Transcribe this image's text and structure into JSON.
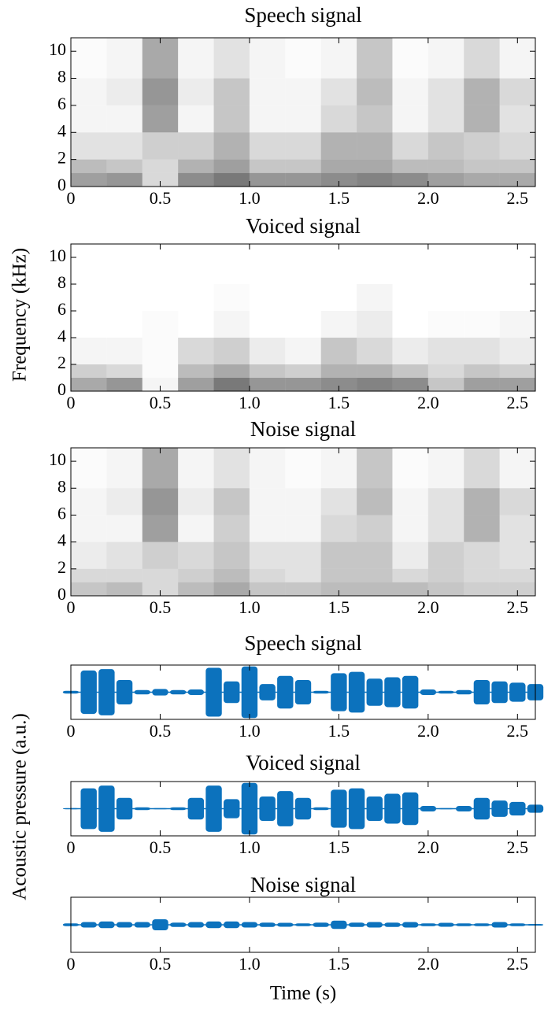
{
  "chart_data": [
    {
      "type": "spectrogram",
      "title": "Speech signal",
      "ylabel": "Frequency (kHz)",
      "xlim": [
        0,
        2.6
      ],
      "ylim": [
        0,
        11
      ],
      "xticks": [
        0,
        0.5,
        {
          "value": 1,
          "label": "1.0"
        },
        1.5,
        {
          "value": 2,
          "label": "2.0"
        },
        2.5
      ],
      "yticks": [
        0,
        2,
        4,
        6,
        8,
        10
      ],
      "time_edges": [
        0,
        0.2,
        0.4,
        0.6,
        0.8,
        1,
        1.2,
        1.4,
        1.6,
        1.8,
        2,
        2.2,
        2.4,
        2.6
      ],
      "freq_edges": [
        0,
        1,
        2,
        4,
        6,
        8,
        11
      ],
      "intensity": [
        [
          0.5,
          0.35,
          0.15,
          0.05,
          0.05,
          0.02
        ],
        [
          0.55,
          0.3,
          0.15,
          0.05,
          0.1,
          0.05
        ],
        [
          0.2,
          0.2,
          0.25,
          0.5,
          0.55,
          0.45
        ],
        [
          0.6,
          0.4,
          0.25,
          0.05,
          0.1,
          0.05
        ],
        [
          0.7,
          0.5,
          0.4,
          0.3,
          0.3,
          0.15
        ],
        [
          0.55,
          0.3,
          0.2,
          0.05,
          0.05,
          0.05
        ],
        [
          0.55,
          0.3,
          0.2,
          0.05,
          0.05,
          0.02
        ],
        [
          0.6,
          0.45,
          0.4,
          0.2,
          0.15,
          0.05
        ],
        [
          0.65,
          0.45,
          0.4,
          0.3,
          0.35,
          0.3
        ],
        [
          0.6,
          0.35,
          0.2,
          0.05,
          0.05,
          0.02
        ],
        [
          0.5,
          0.35,
          0.3,
          0.15,
          0.15,
          0.05
        ],
        [
          0.45,
          0.3,
          0.25,
          0.4,
          0.4,
          0.2
        ],
        [
          0.45,
          0.3,
          0.2,
          0.15,
          0.2,
          0.05
        ]
      ]
    },
    {
      "type": "spectrogram",
      "title": "Voiced signal",
      "xlim": [
        0,
        2.6
      ],
      "ylim": [
        0,
        11
      ],
      "xticks": [
        0,
        0.5,
        {
          "value": 1,
          "label": "1.0"
        },
        1.5,
        {
          "value": 2,
          "label": "2.0"
        },
        2.5
      ],
      "yticks": [
        0,
        2,
        4,
        6,
        8,
        10
      ],
      "time_edges": [
        0,
        0.2,
        0.4,
        0.6,
        0.8,
        1,
        1.2,
        1.4,
        1.6,
        1.8,
        2,
        2.2,
        2.4,
        2.6
      ],
      "freq_edges": [
        0,
        1,
        2,
        4,
        6,
        8,
        11
      ],
      "intensity": [
        [
          0.45,
          0.25,
          0.05,
          0,
          0,
          0
        ],
        [
          0.55,
          0.2,
          0.05,
          0,
          0,
          0
        ],
        [
          0.05,
          0.02,
          0.02,
          0.02,
          0,
          0
        ],
        [
          0.5,
          0.35,
          0.2,
          0,
          0,
          0
        ],
        [
          0.7,
          0.45,
          0.25,
          0.05,
          0.02,
          0
        ],
        [
          0.55,
          0.3,
          0.1,
          0,
          0,
          0
        ],
        [
          0.55,
          0.25,
          0.05,
          0,
          0,
          0
        ],
        [
          0.6,
          0.4,
          0.3,
          0.05,
          0,
          0
        ],
        [
          0.65,
          0.4,
          0.2,
          0.1,
          0.05,
          0
        ],
        [
          0.6,
          0.3,
          0.1,
          0,
          0,
          0
        ],
        [
          0.3,
          0.2,
          0.15,
          0.02,
          0,
          0
        ],
        [
          0.5,
          0.3,
          0.15,
          0.02,
          0,
          0
        ],
        [
          0.5,
          0.25,
          0.1,
          0.05,
          0,
          0
        ]
      ]
    },
    {
      "type": "spectrogram",
      "title": "Noise signal",
      "xlim": [
        0,
        2.6
      ],
      "ylim": [
        0,
        11
      ],
      "xticks": [
        0,
        0.5,
        {
          "value": 1,
          "label": "1.0"
        },
        1.5,
        {
          "value": 2,
          "label": "2.0"
        },
        2.5
      ],
      "yticks": [
        0,
        2,
        4,
        6,
        8,
        10
      ],
      "time_edges": [
        0,
        0.2,
        0.4,
        0.6,
        0.8,
        1,
        1.2,
        1.4,
        1.6,
        1.8,
        2,
        2.2,
        2.4,
        2.6
      ],
      "freq_edges": [
        0,
        1,
        2,
        4,
        6,
        8,
        11
      ],
      "intensity": [
        [
          0.3,
          0.2,
          0.1,
          0.05,
          0.05,
          0.02
        ],
        [
          0.35,
          0.2,
          0.15,
          0.05,
          0.1,
          0.05
        ],
        [
          0.2,
          0.2,
          0.25,
          0.5,
          0.55,
          0.45
        ],
        [
          0.35,
          0.25,
          0.2,
          0.05,
          0.1,
          0.05
        ],
        [
          0.45,
          0.35,
          0.3,
          0.25,
          0.3,
          0.15
        ],
        [
          0.3,
          0.2,
          0.15,
          0.05,
          0.05,
          0.05
        ],
        [
          0.3,
          0.15,
          0.15,
          0.05,
          0.05,
          0.02
        ],
        [
          0.35,
          0.3,
          0.3,
          0.2,
          0.15,
          0.05
        ],
        [
          0.35,
          0.3,
          0.3,
          0.25,
          0.35,
          0.3
        ],
        [
          0.35,
          0.2,
          0.1,
          0.05,
          0.05,
          0.02
        ],
        [
          0.3,
          0.25,
          0.25,
          0.15,
          0.15,
          0.05
        ],
        [
          0.25,
          0.2,
          0.2,
          0.4,
          0.4,
          0.2
        ],
        [
          0.25,
          0.2,
          0.15,
          0.15,
          0.2,
          0.05
        ]
      ]
    },
    {
      "type": "waveform",
      "title": "Speech signal",
      "ylabel": "Acoustic pressure (a.u.)",
      "color": "#0c72bd",
      "xlim": [
        0,
        2.6
      ],
      "ylim": [
        -1,
        1
      ],
      "xticks": [
        0,
        0.5,
        {
          "value": 1,
          "label": "1.0"
        },
        1.5,
        {
          "value": 2,
          "label": "2.0"
        },
        2.5
      ],
      "x": [
        0,
        0.1,
        0.2,
        0.3,
        0.4,
        0.5,
        0.6,
        0.7,
        0.8,
        0.9,
        1,
        1.1,
        1.2,
        1.3,
        1.4,
        1.5,
        1.6,
        1.7,
        1.8,
        1.9,
        2,
        2.1,
        2.2,
        2.3,
        2.4,
        2.5,
        2.6
      ],
      "values": [
        0.05,
        0.8,
        0.85,
        0.45,
        0.08,
        0.12,
        0.08,
        0.1,
        0.9,
        0.4,
        0.95,
        0.3,
        0.6,
        0.45,
        0.05,
        0.7,
        0.75,
        0.5,
        0.55,
        0.6,
        0.1,
        0.05,
        0.08,
        0.45,
        0.4,
        0.35,
        0.3
      ]
    },
    {
      "type": "waveform",
      "title": "Voiced signal",
      "color": "#0c72bd",
      "xlim": [
        0,
        2.6
      ],
      "ylim": [
        -1,
        1
      ],
      "xticks": [
        0,
        0.5,
        {
          "value": 1,
          "label": "1.0"
        },
        1.5,
        {
          "value": 2,
          "label": "2.0"
        },
        2.5
      ],
      "x": [
        0,
        0.1,
        0.2,
        0.3,
        0.4,
        0.5,
        0.6,
        0.7,
        0.8,
        0.9,
        1,
        1.1,
        1.2,
        1.3,
        1.4,
        1.5,
        1.6,
        1.7,
        1.8,
        1.9,
        2,
        2.1,
        2.2,
        2.3,
        2.4,
        2.5,
        2.6
      ],
      "values": [
        0.02,
        0.75,
        0.85,
        0.4,
        0.05,
        0.02,
        0.05,
        0.4,
        0.85,
        0.35,
        0.95,
        0.45,
        0.65,
        0.4,
        0.05,
        0.7,
        0.75,
        0.45,
        0.55,
        0.6,
        0.1,
        0.02,
        0.1,
        0.4,
        0.3,
        0.25,
        0.15
      ]
    },
    {
      "type": "waveform",
      "title": "Noise signal",
      "xlabel": "Time (s)",
      "color": "#0c72bd",
      "xlim": [
        0,
        2.6
      ],
      "ylim": [
        -1,
        1
      ],
      "xticks": [
        0,
        0.5,
        {
          "value": 1,
          "label": "1.0"
        },
        1.5,
        {
          "value": 2,
          "label": "2.0"
        },
        2.5
      ],
      "x": [
        0,
        0.1,
        0.2,
        0.3,
        0.4,
        0.5,
        0.6,
        0.7,
        0.8,
        0.9,
        1,
        1.1,
        1.2,
        1.3,
        1.4,
        1.5,
        1.6,
        1.7,
        1.8,
        1.9,
        2,
        2.1,
        2.2,
        2.3,
        2.4,
        2.5,
        2.6
      ],
      "values": [
        0.05,
        0.1,
        0.12,
        0.1,
        0.1,
        0.2,
        0.08,
        0.1,
        0.12,
        0.12,
        0.1,
        0.08,
        0.07,
        0.05,
        0.08,
        0.15,
        0.08,
        0.1,
        0.08,
        0.1,
        0.05,
        0.07,
        0.05,
        0.05,
        0.1,
        0.05,
        0.03
      ]
    }
  ]
}
